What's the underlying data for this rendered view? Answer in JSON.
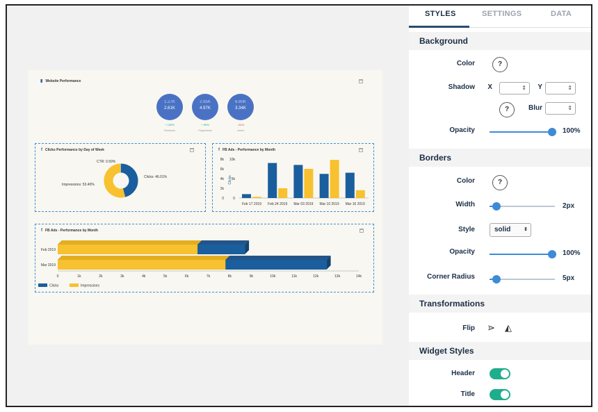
{
  "dashboard": {
    "title": "Website Performance",
    "kpis": [
      {
        "prev": "1.27K",
        "value": "2.61K",
        "change": "+ 105%",
        "label": "Sessions",
        "color": "#1fae8c"
      },
      {
        "prev": "2.95K",
        "value": "4.97K",
        "change": "+ 69%",
        "label": "Pageviews",
        "color": "#1fae8c"
      },
      {
        "prev": "6.80K",
        "value": "3.34K",
        "change": "- 51%",
        "label": "Users",
        "color": "#e0445a"
      }
    ],
    "donut_widget": {
      "title": "Clicks Performance by Day of Week",
      "labels": [
        "CTR: 0.59%",
        "Clicks: 46.01%",
        "Impressions: 53.40%"
      ]
    },
    "bar_widget": {
      "title": "FB Ads - Performance by Month"
    },
    "hbar_widget": {
      "title": "FB Ads - Performance by Month"
    }
  },
  "chart_data": [
    {
      "type": "pie",
      "title": "Clicks Performance by Day of Week",
      "slices": [
        {
          "label": "Clicks",
          "value": 46.01,
          "color": "#1a5e9e"
        },
        {
          "label": "Impressions",
          "value": 53.4,
          "color": "#f7c12f"
        },
        {
          "label": "CTR",
          "value": 0.59,
          "color": "#9db3cc"
        }
      ]
    },
    {
      "type": "bar",
      "title": "FB Ads - Performance by Month",
      "categories": [
        "Feb 17 2019",
        "Feb 24 2019",
        "Mar 03 2019",
        "Mar 10 2019",
        "Mar 16 2019"
      ],
      "series": [
        {
          "name": "Clicks",
          "values": [
            1000,
            9000,
            8500,
            6200,
            6500
          ],
          "color": "#1a5e9e"
        },
        {
          "name": "Impressions",
          "values": [
            300,
            2500,
            7500,
            9800,
            2000
          ],
          "color": "#f7c12f"
        }
      ],
      "ylabel": "Clicks",
      "yticks": [
        "0",
        "5k",
        "10k"
      ],
      "yticks_left": [
        "0",
        "2k",
        "4k",
        "6k",
        "8k"
      ],
      "ylim": [
        0,
        10000
      ]
    },
    {
      "type": "bar",
      "orientation": "horizontal",
      "title": "FB Ads - Performance by Month",
      "categories": [
        "Feb 2019",
        "Mar 2019"
      ],
      "series": [
        {
          "name": "Clicks",
          "values": [
            8700,
            12500
          ],
          "color": "#1a5e9e"
        },
        {
          "name": "Impressions",
          "values": [
            6500,
            7800
          ],
          "color": "#f7c12f"
        }
      ],
      "xticks": [
        "0",
        "1k",
        "2k",
        "3k",
        "4k",
        "5k",
        "6k",
        "7k",
        "8k",
        "9k",
        "10k",
        "11k",
        "12k",
        "13k",
        "14k"
      ],
      "xlim": [
        0,
        14000
      ],
      "legend": [
        "Clicks",
        "Impressions"
      ]
    }
  ],
  "panel": {
    "tabs": [
      "STYLES",
      "SETTINGS",
      "DATA"
    ],
    "background": {
      "title": "Background",
      "color_label": "Color",
      "shadow_label": "Shadow",
      "x_label": "X",
      "y_label": "Y",
      "blur_label": "Blur",
      "opacity_label": "Opacity",
      "opacity_value": "100%",
      "opacity_level": 1.0
    },
    "borders": {
      "title": "Borders",
      "color_label": "Color",
      "width_label": "Width",
      "width_value": "2px",
      "style_label": "Style",
      "style_value": "solid",
      "opacity_label": "Opacity",
      "opacity_value": "100%",
      "radius_label": "Corner Radius",
      "radius_value": "5px"
    },
    "transformations": {
      "title": "Transformations",
      "flip_label": "Flip"
    },
    "widget_styles": {
      "title": "Widget Styles",
      "header_label": "Header",
      "title_label": "Title"
    },
    "question": "?"
  }
}
